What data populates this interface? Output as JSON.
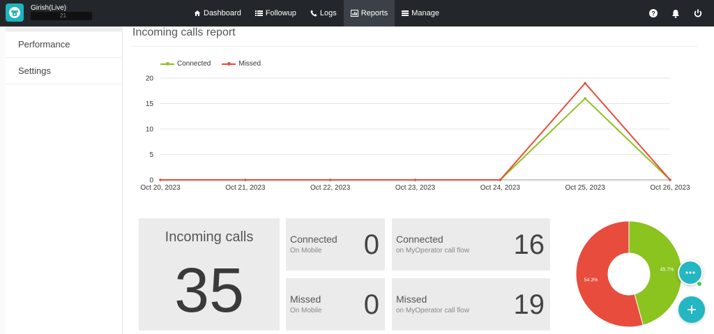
{
  "app": {
    "account_name": "Girish(Live)",
    "account_status_partial": "21"
  },
  "nav": {
    "items": [
      {
        "label": "Dashboard",
        "icon": "home-icon"
      },
      {
        "label": "Followup",
        "icon": "list-icon"
      },
      {
        "label": "Logs",
        "icon": "phone-icon"
      },
      {
        "label": "Reports",
        "icon": "bar-chart-icon",
        "active": true
      },
      {
        "label": "Manage",
        "icon": "menu-icon"
      }
    ],
    "right_icons": [
      "help-icon",
      "bell-icon",
      "power-icon"
    ]
  },
  "sidebar": {
    "items": [
      {
        "label": "Performance"
      },
      {
        "label": "Settings"
      }
    ]
  },
  "report": {
    "title": "Incoming calls report"
  },
  "colors": {
    "connected": "#8bc31f",
    "missed": "#e74c3c",
    "accent": "#22b7c2"
  },
  "chart_data": {
    "type": "line",
    "categories": [
      "Oct 20, 2023",
      "Oct 21, 2023",
      "Oct 22, 2023",
      "Oct 23, 2023",
      "Oct 24, 2023",
      "Oct 25, 2023",
      "Oct 26, 2023"
    ],
    "series": [
      {
        "name": "Connected",
        "values": [
          0,
          0,
          0,
          0,
          0,
          16,
          0
        ],
        "color": "#8bc31f"
      },
      {
        "name": "Missed",
        "values": [
          0,
          0,
          0,
          0,
          0,
          19,
          0
        ],
        "color": "#e74c3c"
      }
    ],
    "ylim": [
      0,
      20
    ],
    "yticks": [
      0,
      5,
      10,
      15,
      20
    ],
    "grid": true,
    "legend": "top-left"
  },
  "stats": {
    "incoming": {
      "label": "Incoming calls",
      "value": "35"
    },
    "connected_mobile": {
      "title": "Connected",
      "sub": "On Mobile",
      "value": "0"
    },
    "connected_flow": {
      "title": "Connected",
      "sub": "on MyOperator call flow",
      "value": "16"
    },
    "missed_mobile": {
      "title": "Missed",
      "sub": "On Mobile",
      "value": "0"
    },
    "missed_flow": {
      "title": "Missed",
      "sub": "on MyOperator call flow",
      "value": "19"
    }
  },
  "donut": {
    "slices": [
      {
        "name": "Connected",
        "percent": 45.7,
        "label": "45.7%",
        "color": "#8bc31f"
      },
      {
        "name": "Missed",
        "percent": 54.3,
        "label": "54.3%",
        "color": "#e74c3c"
      }
    ]
  }
}
